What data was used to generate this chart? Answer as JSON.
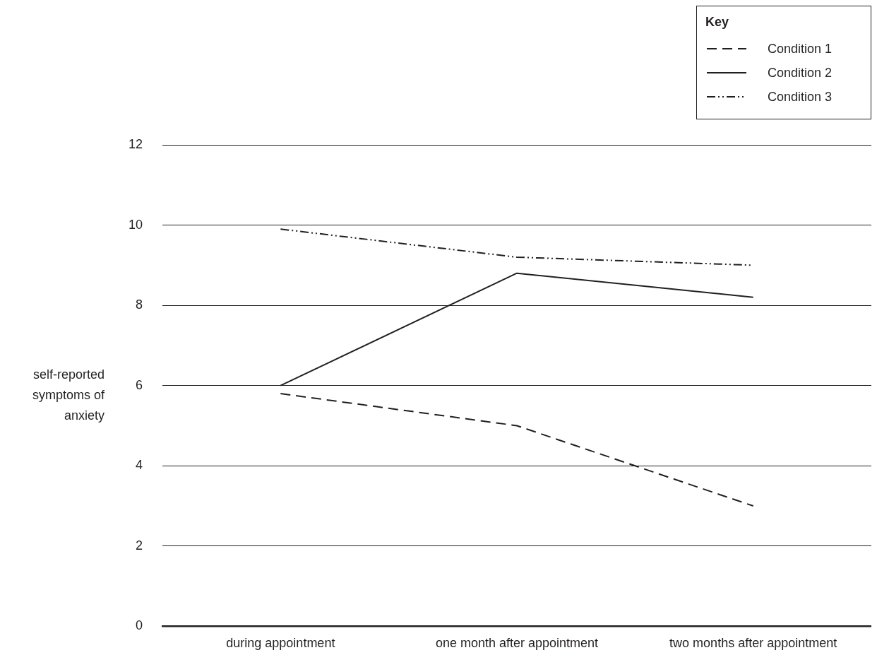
{
  "chart_data": {
    "type": "line",
    "ylabel": "self-reported symptoms of anxiety",
    "legend_title": "Key",
    "legend": "top right",
    "grid": "y",
    "categories": [
      "during appointment",
      "one month after appointment",
      "two months after appointment"
    ],
    "ylim": [
      0,
      12
    ],
    "yticks": [
      0,
      2,
      4,
      6,
      8,
      10,
      12
    ],
    "series": [
      {
        "name": "Condition 1",
        "color": "#231f20",
        "line_style": "dashed",
        "values": [
          5.8,
          5.0,
          3.0
        ]
      },
      {
        "name": "Condition 2",
        "color": "#231f20",
        "line_style": "solid",
        "values": [
          6.0,
          8.8,
          8.2
        ]
      },
      {
        "name": "Condition 3",
        "color": "#231f20",
        "line_style": "dotted",
        "values": [
          9.9,
          9.2,
          9.0
        ]
      }
    ]
  }
}
